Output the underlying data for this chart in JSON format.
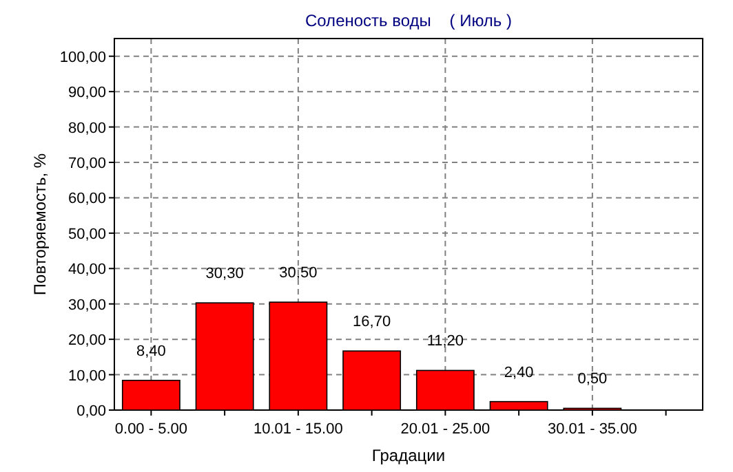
{
  "chart_data": {
    "type": "bar",
    "title": "Соленость воды    ( Июль )",
    "xlabel": "Градации",
    "ylabel": "Повторяемость, %",
    "categories": [
      "0.00 - 5.00",
      null,
      "10.01 - 15.00",
      null,
      "20.01 - 25.00",
      null,
      "30.01 - 35.00",
      null
    ],
    "values": [
      8.4,
      30.3,
      30.5,
      16.7,
      11.2,
      2.4,
      0.5,
      null
    ],
    "value_labels": [
      "8,40",
      "30,30",
      "30,50",
      "16,70",
      "11,20",
      "2,40",
      "0,50",
      null
    ],
    "color": "#ff0000",
    "ylim": [
      0,
      105
    ],
    "yticks": [
      {
        "value": 0,
        "label": "0,00"
      },
      {
        "value": 10,
        "label": "10,00"
      },
      {
        "value": 20,
        "label": "20,00"
      },
      {
        "value": 30,
        "label": "30,00"
      },
      {
        "value": 40,
        "label": "40,00"
      },
      {
        "value": 50,
        "label": "50,00"
      },
      {
        "value": 60,
        "label": "60,00"
      },
      {
        "value": 70,
        "label": "70,00"
      },
      {
        "value": 80,
        "label": "80,00"
      },
      {
        "value": 90,
        "label": "90,00"
      },
      {
        "value": 100,
        "label": "100,00"
      }
    ],
    "grid": true
  }
}
